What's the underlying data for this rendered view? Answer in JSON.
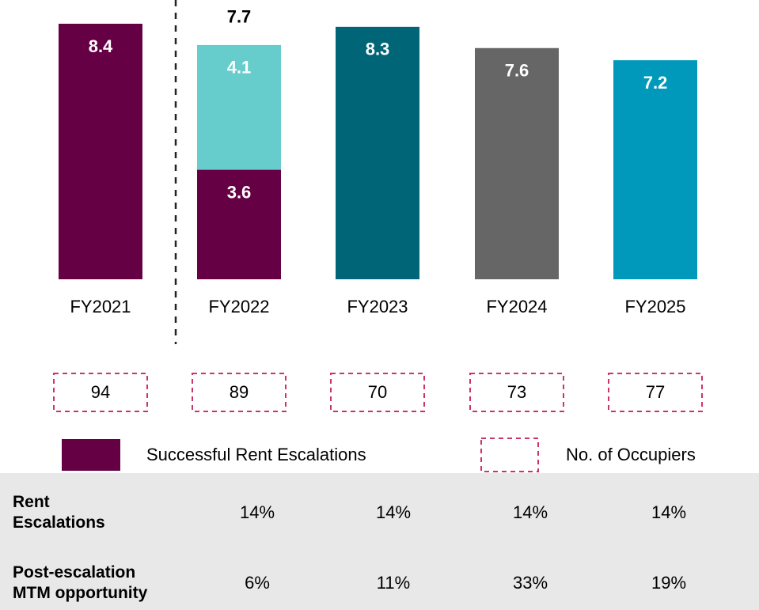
{
  "chart_data": {
    "type": "bar",
    "categories": [
      "FY2021",
      "FY2022",
      "FY2023",
      "FY2024",
      "FY2025"
    ],
    "series": [
      {
        "name": "Successful Rent Escalations",
        "color": "#660044",
        "values": [
          8.4,
          3.6,
          null,
          null,
          null
        ]
      },
      {
        "colors": [
          null,
          "#66cccc",
          "#006677",
          "#666666",
          "#0099bb"
        ],
        "values": [
          null,
          4.1,
          8.3,
          7.6,
          7.2
        ]
      }
    ],
    "totals": [
      null,
      7.7,
      null,
      null,
      null
    ],
    "ylim": [
      0,
      8.4
    ],
    "occupiers": {
      "name": "No. of Occupiers",
      "color": "#cc3366",
      "values": [
        94,
        89,
        70,
        73,
        77
      ]
    }
  },
  "table": {
    "rows": [
      {
        "label": "Rent\nEscalations",
        "cells": [
          "14%",
          "14%",
          "14%",
          "14%"
        ]
      },
      {
        "label": "Post-escalation\nMTM opportunity",
        "cells": [
          "6%",
          "11%",
          "33%",
          "19%"
        ]
      }
    ]
  }
}
